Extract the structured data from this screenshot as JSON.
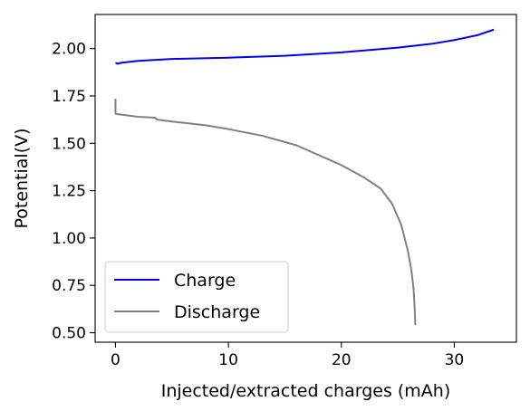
{
  "chart_data": {
    "type": "line",
    "xlabel": "Injected/extracted charges (mAh)",
    "ylabel": "Potential(V)",
    "xlim": [
      -1.8,
      35.5
    ],
    "ylim": [
      0.45,
      2.18
    ],
    "xticks": [
      0,
      10,
      20,
      30
    ],
    "yticks": [
      0.5,
      0.75,
      1.0,
      1.25,
      1.5,
      1.75,
      2.0
    ],
    "xtick_labels": [
      "0",
      "10",
      "20",
      "30"
    ],
    "ytick_labels": [
      "0.50",
      "0.75",
      "1.00",
      "1.25",
      "1.50",
      "1.75",
      "2.00"
    ],
    "grid": false,
    "legend_position": "lower-left",
    "series": [
      {
        "name": "Charge",
        "color": "#0000ee",
        "x": [
          0,
          0.2,
          0.5,
          2,
          5,
          10,
          15,
          20,
          25,
          28,
          30,
          32,
          33.5
        ],
        "y": [
          1.925,
          1.92,
          1.925,
          1.935,
          1.945,
          1.952,
          1.962,
          1.98,
          2.005,
          2.025,
          2.045,
          2.07,
          2.1
        ]
      },
      {
        "name": "Discharge",
        "color": "#808080",
        "x": [
          0,
          0,
          0.05,
          2,
          3.5,
          3.7,
          5,
          8,
          10,
          13,
          16,
          20,
          22,
          23.5,
          24.5,
          25.3,
          25.9,
          26.2,
          26.4,
          26.5,
          26.55
        ],
        "y": [
          1.735,
          1.66,
          1.655,
          1.64,
          1.635,
          1.625,
          1.615,
          1.595,
          1.575,
          1.54,
          1.49,
          1.385,
          1.32,
          1.26,
          1.18,
          1.07,
          0.93,
          0.83,
          0.73,
          0.62,
          0.54
        ]
      }
    ]
  }
}
